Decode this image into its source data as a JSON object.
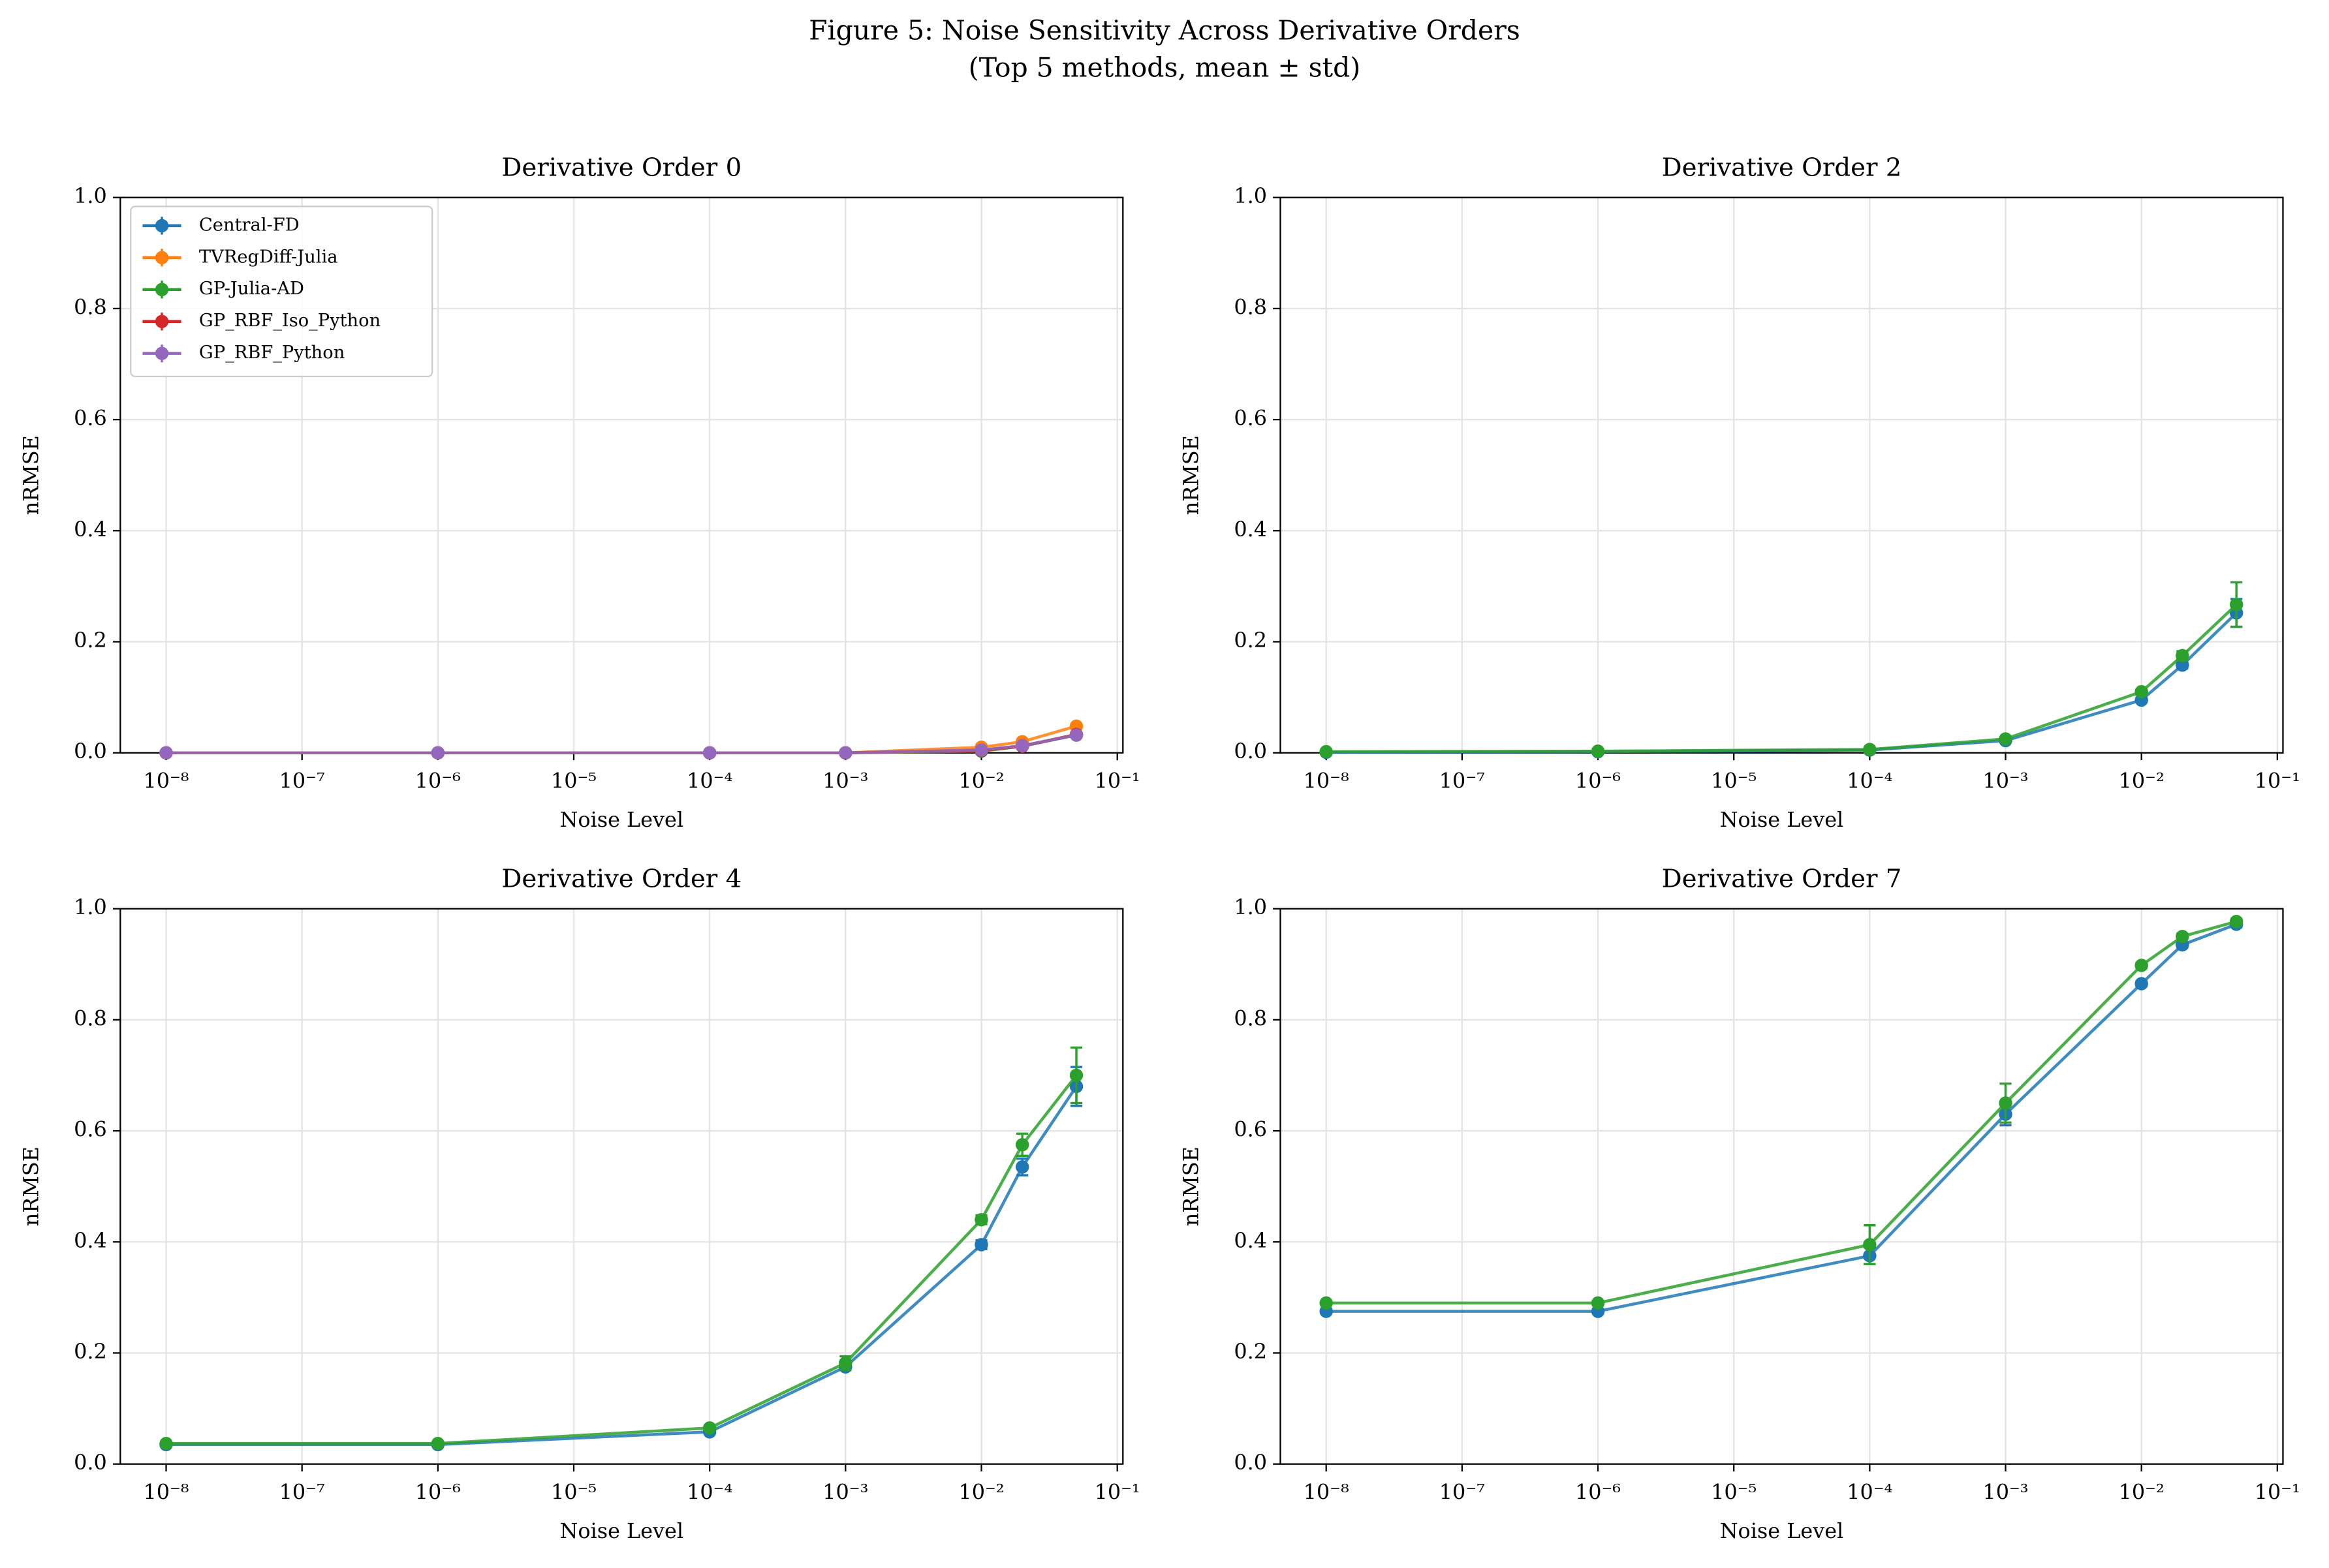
{
  "title": "Figure 5: Noise Sensitivity Across Derivative Orders",
  "subtitle": "(Top 5 methods, mean ± std)",
  "chart_data": [
    {
      "type": "line",
      "title": "Derivative Order 0",
      "xlabel": "Noise Level",
      "ylabel": "nRMSE",
      "xscale": "log",
      "grid": true,
      "legend": "upper left",
      "x": [
        1e-08,
        1e-06,
        0.0001,
        0.001,
        0.01,
        0.02,
        0.05
      ],
      "xlim": [
        4.6e-09,
        0.11
      ],
      "xticks": [
        {
          "value": 1e-08,
          "label": "10⁻⁸"
        },
        {
          "value": 1e-07,
          "label": "10⁻⁷"
        },
        {
          "value": 1e-06,
          "label": "10⁻⁶"
        },
        {
          "value": 1e-05,
          "label": "10⁻⁵"
        },
        {
          "value": 0.0001,
          "label": "10⁻⁴"
        },
        {
          "value": 0.001,
          "label": "10⁻³"
        },
        {
          "value": 0.01,
          "label": "10⁻²"
        },
        {
          "value": 0.1,
          "label": "10⁻¹"
        }
      ],
      "ylim": [
        0,
        1
      ],
      "yticks": [
        {
          "value": 0,
          "label": "0.0"
        },
        0.2,
        0.4,
        0.6,
        0.8,
        {
          "value": 1,
          "label": "1.0"
        }
      ],
      "series": [
        {
          "name": "Central-FD",
          "color": "#1f77b4",
          "values": [
            0,
            0,
            0,
            0,
            0.005,
            0.012,
            0.032
          ],
          "errors": [
            0,
            0,
            0,
            0,
            0,
            0,
            0
          ]
        },
        {
          "name": "TVRegDiff-Julia",
          "color": "#ff7f0e",
          "values": [
            0,
            0,
            0,
            0,
            0.01,
            0.02,
            0.048
          ],
          "errors": [
            0,
            0,
            0,
            0,
            0,
            0,
            0
          ]
        },
        {
          "name": "GP-Julia-AD",
          "color": "#2ca02c",
          "values": [
            0,
            0,
            0,
            0,
            0.003,
            0.012,
            0.033
          ],
          "errors": [
            0,
            0,
            0,
            0,
            0,
            0,
            0
          ]
        },
        {
          "name": "GP_RBF_Iso_Python",
          "color": "#d62728",
          "values": [
            0,
            0,
            0,
            0,
            0.004,
            0.012,
            0.033
          ],
          "errors": [
            0,
            0,
            0,
            0,
            0,
            0,
            0
          ]
        },
        {
          "name": "GP_RBF_Python",
          "color": "#9467bd",
          "values": [
            0,
            0,
            0,
            0,
            0.005,
            0.013,
            0.032
          ],
          "errors": [
            0,
            0,
            0,
            0,
            0,
            0,
            0
          ]
        }
      ]
    },
    {
      "type": "line",
      "title": "Derivative Order 2",
      "xlabel": "Noise Level",
      "ylabel": "nRMSE",
      "xscale": "log",
      "grid": true,
      "x": [
        1e-08,
        1e-06,
        0.0001,
        0.001,
        0.01,
        0.02,
        0.05
      ],
      "xlim": [
        4.6e-09,
        0.11
      ],
      "xticks": [
        {
          "value": 1e-08,
          "label": "10⁻⁸"
        },
        {
          "value": 1e-07,
          "label": "10⁻⁷"
        },
        {
          "value": 1e-06,
          "label": "10⁻⁶"
        },
        {
          "value": 1e-05,
          "label": "10⁻⁵"
        },
        {
          "value": 0.0001,
          "label": "10⁻⁴"
        },
        {
          "value": 0.001,
          "label": "10⁻³"
        },
        {
          "value": 0.01,
          "label": "10⁻²"
        },
        {
          "value": 0.1,
          "label": "10⁻¹"
        }
      ],
      "ylim": [
        0,
        1
      ],
      "yticks": [
        {
          "value": 0,
          "label": "0.0"
        },
        0.2,
        0.4,
        0.6,
        0.8,
        {
          "value": 1,
          "label": "1.0"
        }
      ],
      "series": [
        {
          "name": "Central-FD",
          "color": "#1f77b4",
          "values": [
            0.001,
            0.002,
            0.005,
            0.022,
            0.095,
            0.158,
            0.252
          ],
          "errors": [
            0,
            0,
            0,
            0,
            0.004,
            0.006,
            0.025
          ]
        },
        {
          "name": "GP-Julia-AD",
          "color": "#2ca02c",
          "values": [
            0.002,
            0.003,
            0.006,
            0.025,
            0.11,
            0.175,
            0.267
          ],
          "errors": [
            0,
            0,
            0,
            0,
            0.005,
            0.008,
            0.04
          ]
        }
      ]
    },
    {
      "type": "line",
      "title": "Derivative Order 4",
      "xlabel": "Noise Level",
      "ylabel": "nRMSE",
      "xscale": "log",
      "grid": true,
      "x": [
        1e-08,
        1e-06,
        0.0001,
        0.001,
        0.01,
        0.02,
        0.05
      ],
      "xlim": [
        4.6e-09,
        0.11
      ],
      "xticks": [
        {
          "value": 1e-08,
          "label": "10⁻⁸"
        },
        {
          "value": 1e-07,
          "label": "10⁻⁷"
        },
        {
          "value": 1e-06,
          "label": "10⁻⁶"
        },
        {
          "value": 1e-05,
          "label": "10⁻⁵"
        },
        {
          "value": 0.0001,
          "label": "10⁻⁴"
        },
        {
          "value": 0.001,
          "label": "10⁻³"
        },
        {
          "value": 0.01,
          "label": "10⁻²"
        },
        {
          "value": 0.1,
          "label": "10⁻¹"
        }
      ],
      "ylim": [
        0,
        1
      ],
      "yticks": [
        {
          "value": 0,
          "label": "0.0"
        },
        0.2,
        0.4,
        0.6,
        0.8,
        {
          "value": 1,
          "label": "1.0"
        }
      ],
      "series": [
        {
          "name": "Central-FD",
          "color": "#1f77b4",
          "values": [
            0.035,
            0.035,
            0.058,
            0.175,
            0.395,
            0.535,
            0.68
          ],
          "errors": [
            0,
            0,
            0.004,
            0.006,
            0.008,
            0.015,
            0.035
          ]
        },
        {
          "name": "GP-Julia-AD",
          "color": "#2ca02c",
          "values": [
            0.037,
            0.037,
            0.065,
            0.182,
            0.44,
            0.575,
            0.7
          ],
          "errors": [
            0,
            0,
            0.004,
            0.012,
            0.008,
            0.02,
            0.05
          ]
        }
      ]
    },
    {
      "type": "line",
      "title": "Derivative Order 7",
      "xlabel": "Noise Level",
      "ylabel": "nRMSE",
      "xscale": "log",
      "grid": true,
      "x": [
        1e-08,
        1e-06,
        0.0001,
        0.001,
        0.01,
        0.02,
        0.05
      ],
      "xlim": [
        4.6e-09,
        0.11
      ],
      "xticks": [
        {
          "value": 1e-08,
          "label": "10⁻⁸"
        },
        {
          "value": 1e-07,
          "label": "10⁻⁷"
        },
        {
          "value": 1e-06,
          "label": "10⁻⁶"
        },
        {
          "value": 1e-05,
          "label": "10⁻⁵"
        },
        {
          "value": 0.0001,
          "label": "10⁻⁴"
        },
        {
          "value": 0.001,
          "label": "10⁻³"
        },
        {
          "value": 0.01,
          "label": "10⁻²"
        },
        {
          "value": 0.1,
          "label": "10⁻¹"
        }
      ],
      "ylim": [
        0,
        1
      ],
      "yticks": [
        {
          "value": 0,
          "label": "0.0"
        },
        0.2,
        0.4,
        0.6,
        0.8,
        {
          "value": 1,
          "label": "1.0"
        }
      ],
      "series": [
        {
          "name": "Central-FD",
          "color": "#1f77b4",
          "values": [
            0.275,
            0.275,
            0.375,
            0.63,
            0.865,
            0.935,
            0.972
          ],
          "errors": [
            0,
            0,
            0.015,
            0.02,
            0.005,
            0.005,
            0.005
          ]
        },
        {
          "name": "GP-Julia-AD",
          "color": "#2ca02c",
          "values": [
            0.29,
            0.29,
            0.395,
            0.65,
            0.898,
            0.95,
            0.977
          ],
          "errors": [
            0,
            0,
            0.035,
            0.035,
            0.005,
            0.005,
            0.005
          ]
        }
      ]
    }
  ]
}
